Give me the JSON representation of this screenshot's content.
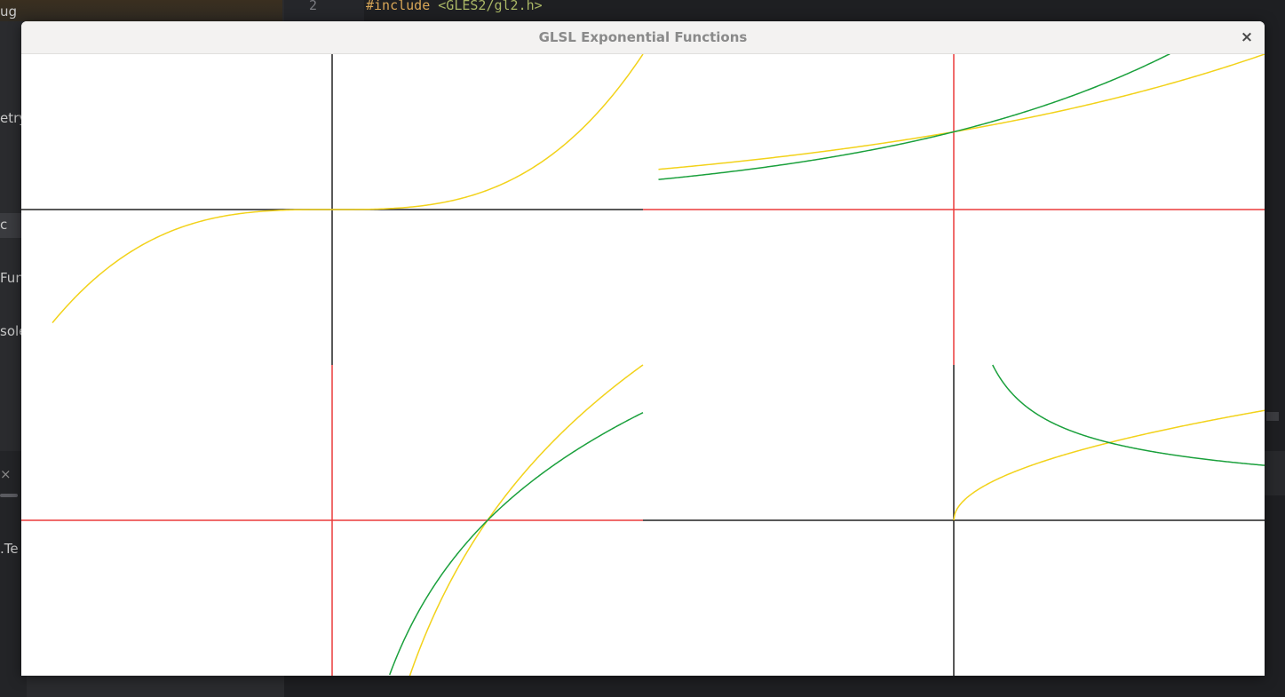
{
  "background": {
    "sidebar_items": [
      "ug",
      "etry",
      "c",
      "Fun",
      "sole",
      "×",
      ".Te"
    ],
    "line_number": "2",
    "code_keyword": "#include",
    "code_include": "<GLES2/gl2.h>"
  },
  "window": {
    "title": "GLSL Exponential Functions",
    "close_label": "×"
  },
  "colors": {
    "curve_yellow": "#f2d21a",
    "curve_green": "#1aa03c",
    "axis_black": "#222222",
    "axis_red": "#ec3b3b"
  },
  "chart_data": [
    {
      "type": "line",
      "panel": "top-left",
      "axes_color": "black",
      "xlim": [
        -2,
        2
      ],
      "ylim": [
        -1,
        1
      ],
      "series": [
        {
          "color": "yellow",
          "function": "x^3 / 8",
          "x": [
            -1.8,
            -1.5,
            -1.0,
            -0.5,
            0.0,
            0.5,
            1.0,
            1.5,
            2.0
          ],
          "y": [
            -0.729,
            -0.422,
            -0.125,
            -0.016,
            0.0,
            0.016,
            0.125,
            0.422,
            1.0
          ]
        }
      ]
    },
    {
      "type": "line",
      "panel": "top-right",
      "axes_color": "red",
      "xlim": [
        -2,
        2
      ],
      "ylim": [
        -1,
        1
      ],
      "series": [
        {
          "color": "yellow",
          "function": "2^(x/2) / 2",
          "x": [
            -1.9,
            -1.0,
            0.0,
            1.0,
            2.0
          ],
          "y": [
            0.259,
            0.354,
            0.5,
            0.707,
            1.0
          ]
        },
        {
          "color": "green",
          "function": "e^(x/2) / 2",
          "x": [
            -1.9,
            -1.0,
            0.0,
            1.0,
            1.39
          ],
          "y": [
            0.193,
            0.303,
            0.5,
            0.824,
            1.0
          ]
        }
      ]
    },
    {
      "type": "line",
      "panel": "bottom-left",
      "axes_color": "red",
      "xlim": [
        -2,
        2
      ],
      "ylim": [
        -1,
        1
      ],
      "series": [
        {
          "color": "yellow",
          "function": "log2(x)",
          "x": [
            0.5,
            0.75,
            1.0,
            1.5,
            2.0
          ],
          "y": [
            -1.0,
            -0.415,
            0.0,
            0.585,
            1.0
          ]
        },
        {
          "color": "green",
          "function": "ln(x)",
          "x": [
            0.37,
            0.5,
            0.75,
            1.0,
            1.5,
            2.0
          ],
          "y": [
            -1.0,
            -0.693,
            -0.288,
            0.0,
            0.405,
            0.693
          ]
        }
      ]
    },
    {
      "type": "line",
      "panel": "bottom-right",
      "axes_color": "black",
      "xlim": [
        -2,
        2
      ],
      "ylim": [
        -1,
        1
      ],
      "series": [
        {
          "color": "yellow",
          "function": "sqrt(x) / 2",
          "x": [
            0.0,
            0.1,
            0.5,
            1.0,
            2.0
          ],
          "y": [
            0.0,
            0.158,
            0.354,
            0.5,
            0.707
          ]
        },
        {
          "color": "green",
          "function": "1 / (2 sqrt(x))",
          "x": [
            0.25,
            0.5,
            1.0,
            2.0
          ],
          "y": [
            1.0,
            0.707,
            0.5,
            0.354
          ]
        }
      ]
    }
  ]
}
